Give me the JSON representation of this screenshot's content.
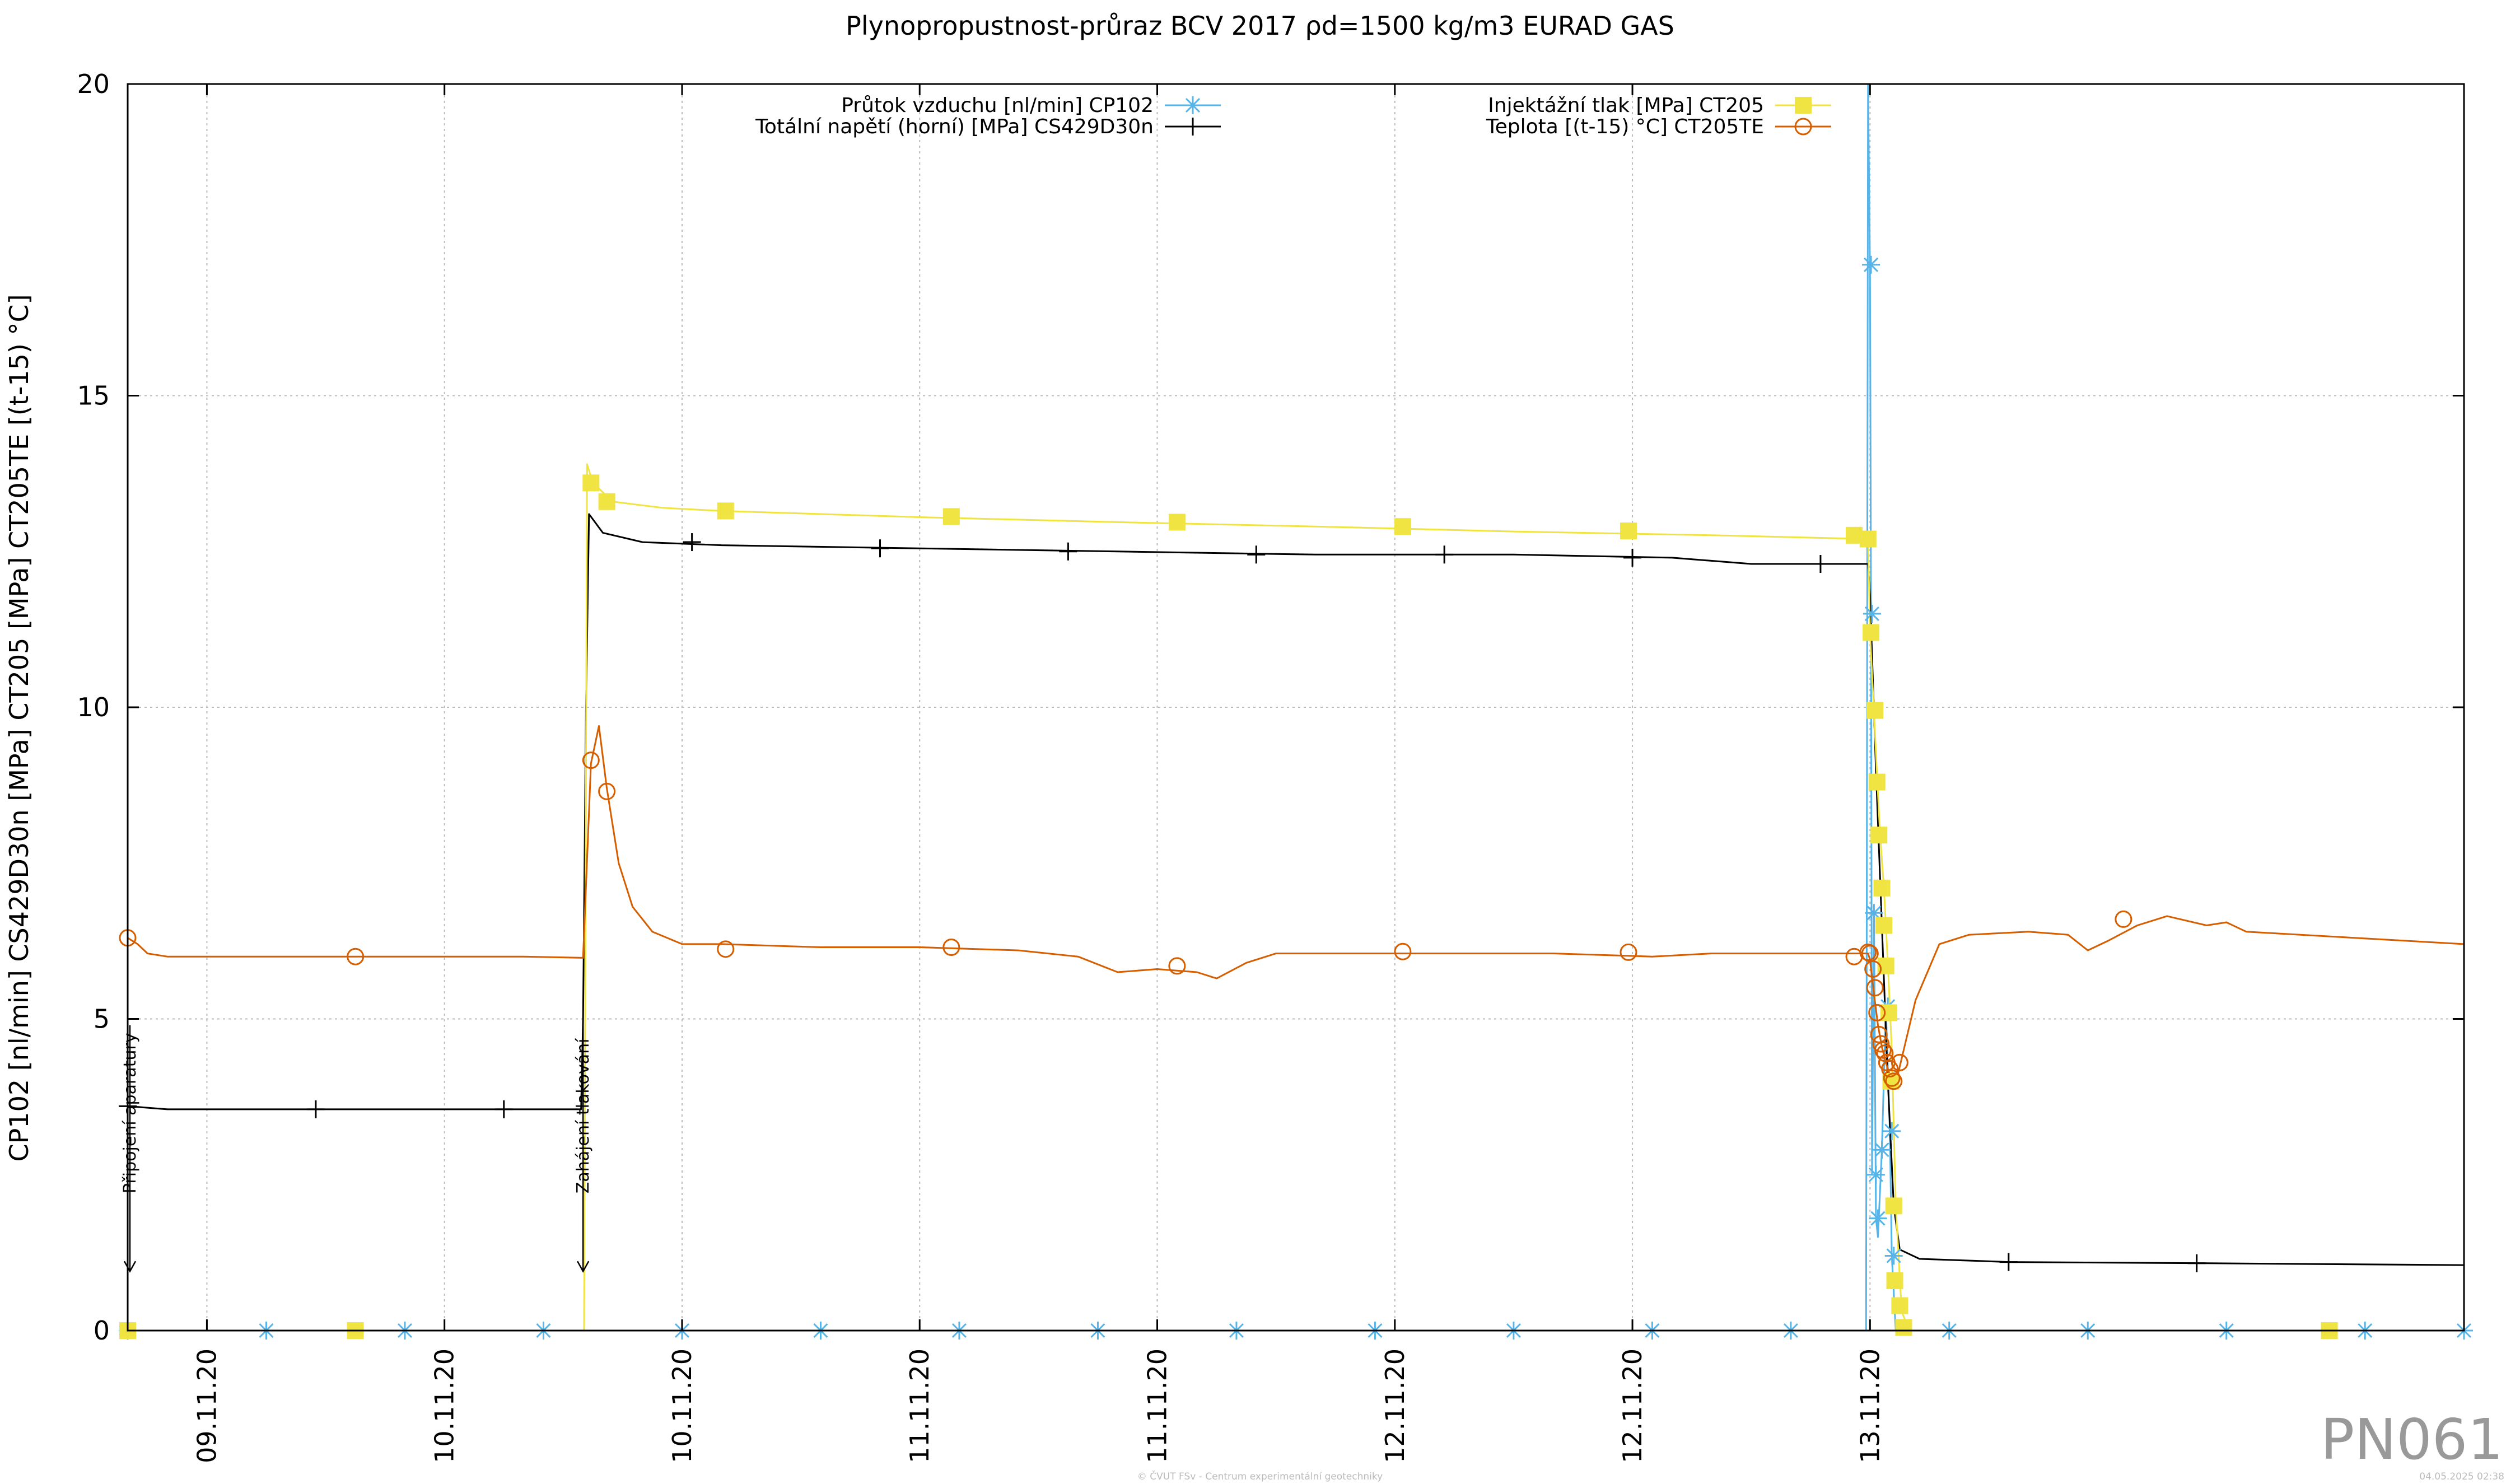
{
  "chart_data": {
    "type": "line",
    "title": "Plynopropustnost-průraz BCV 2017 ρd=1500 kg/m3 EURAD GAS",
    "ylabel": "CP102 [nl/min] CS429D30n [MPa] CT205 [MPa] CT205TE [(t-15) °C]",
    "xlabel": "",
    "x_unit": "hours",
    "xlim": [
      0,
      118
    ],
    "ylim": [
      0,
      20
    ],
    "y_ticks": [
      0,
      5,
      10,
      15,
      20
    ],
    "x_ticks": [
      {
        "x": 4,
        "label": "09.11.20"
      },
      {
        "x": 16,
        "label": "10.11.20"
      },
      {
        "x": 28,
        "label": "10.11.20"
      },
      {
        "x": 40,
        "label": "11.11.20"
      },
      {
        "x": 52,
        "label": "11.11.20"
      },
      {
        "x": 64,
        "label": "12.11.20"
      },
      {
        "x": 76,
        "label": "12.11.20"
      },
      {
        "x": 88,
        "label": "13.11.20"
      }
    ],
    "grid": true,
    "legend_placement": "top",
    "annotations": [
      {
        "x": 0,
        "text": "Připojení aparatury"
      },
      {
        "x": 23,
        "text": "Zahájení tlakování"
      }
    ],
    "series": [
      {
        "name": "Průtok vzduchu [nl/min] CP102",
        "color": "#56b4e9",
        "marker": "star",
        "points": [
          [
            0,
            0
          ],
          [
            23,
            0
          ],
          [
            87.8,
            0
          ],
          [
            87.9,
            20
          ],
          [
            88,
            17
          ],
          [
            88.05,
            11.5
          ],
          [
            88.1,
            2.5
          ],
          [
            88.2,
            6.7
          ],
          [
            88.3,
            1.8
          ],
          [
            88.4,
            1.5
          ],
          [
            88.6,
            2.9
          ],
          [
            88.8,
            5.2
          ],
          [
            89,
            3.2
          ],
          [
            89.1,
            1.2
          ],
          [
            89.3,
            0
          ],
          [
            118,
            0
          ]
        ],
        "marker_points": [
          [
            0,
            0
          ],
          [
            7,
            0
          ],
          [
            14,
            0
          ],
          [
            21,
            0
          ],
          [
            28,
            0
          ],
          [
            35,
            0
          ],
          [
            42,
            0
          ],
          [
            49,
            0
          ],
          [
            56,
            0
          ],
          [
            63,
            0
          ],
          [
            70,
            0
          ],
          [
            77,
            0
          ],
          [
            84,
            0
          ],
          [
            88.05,
            17.1
          ],
          [
            88.1,
            11.5
          ],
          [
            88.2,
            6.7
          ],
          [
            88.3,
            2.5
          ],
          [
            88.4,
            1.8
          ],
          [
            88.6,
            2.9
          ],
          [
            88.9,
            5.2
          ],
          [
            89.1,
            3.2
          ],
          [
            89.2,
            1.2
          ],
          [
            92,
            0
          ],
          [
            99,
            0
          ],
          [
            106,
            0
          ],
          [
            113,
            0
          ],
          [
            118,
            0
          ]
        ]
      },
      {
        "name": "Totální napětí (horní) [MPa] CS429D30n",
        "color": "#000000",
        "marker": "plus",
        "points": [
          [
            0,
            3.6
          ],
          [
            2,
            3.55
          ],
          [
            10,
            3.55
          ],
          [
            20,
            3.55
          ],
          [
            22.9,
            3.55
          ],
          [
            23,
            5
          ],
          [
            23.15,
            10
          ],
          [
            23.3,
            13.1
          ],
          [
            24,
            12.8
          ],
          [
            26,
            12.65
          ],
          [
            30,
            12.6
          ],
          [
            40,
            12.55
          ],
          [
            50,
            12.5
          ],
          [
            60,
            12.45
          ],
          [
            70,
            12.45
          ],
          [
            78,
            12.4
          ],
          [
            82,
            12.3
          ],
          [
            87.9,
            12.3
          ],
          [
            88,
            11.8
          ],
          [
            88.3,
            9
          ],
          [
            88.6,
            6.5
          ],
          [
            88.9,
            4
          ],
          [
            89.2,
            2
          ],
          [
            89.5,
            1.3
          ],
          [
            90.5,
            1.15
          ],
          [
            95,
            1.1
          ],
          [
            105,
            1.08
          ],
          [
            118,
            1.05
          ]
        ],
        "marker_points": [
          [
            0,
            3.6
          ],
          [
            9.5,
            3.55
          ],
          [
            19,
            3.55
          ],
          [
            28.5,
            12.65
          ],
          [
            38,
            12.55
          ],
          [
            47.5,
            12.5
          ],
          [
            57,
            12.45
          ],
          [
            66.5,
            12.45
          ],
          [
            76,
            12.4
          ],
          [
            85.5,
            12.3
          ],
          [
            95,
            1.1
          ],
          [
            104.5,
            1.08
          ]
        ]
      },
      {
        "name": "Injektážní tlak [MPa] CT205",
        "color": "#f0e442",
        "marker": "square",
        "points": [
          [
            0,
            0
          ],
          [
            22.9,
            0
          ],
          [
            23.05,
            0
          ],
          [
            23.2,
            13.9
          ],
          [
            23.5,
            13.6
          ],
          [
            24.5,
            13.3
          ],
          [
            27,
            13.2
          ],
          [
            30,
            13.15
          ],
          [
            40,
            13.05
          ],
          [
            50,
            12.97
          ],
          [
            60,
            12.9
          ],
          [
            70,
            12.82
          ],
          [
            80,
            12.76
          ],
          [
            87.9,
            12.7
          ],
          [
            88,
            11.2
          ],
          [
            88.2,
            9.9
          ],
          [
            88.5,
            8
          ],
          [
            88.7,
            7.1
          ],
          [
            88.9,
            5.9
          ],
          [
            89.1,
            4.5
          ],
          [
            89.3,
            2
          ],
          [
            89.6,
            0.3
          ],
          [
            90,
            0
          ],
          [
            118,
            0
          ]
        ],
        "marker_points": [
          [
            0,
            0
          ],
          [
            11.5,
            0
          ],
          [
            23.4,
            13.6
          ],
          [
            24.2,
            13.3
          ],
          [
            30.2,
            13.15
          ],
          [
            41.6,
            13.06
          ],
          [
            53,
            12.97
          ],
          [
            64.4,
            12.9
          ],
          [
            75.8,
            12.83
          ],
          [
            87.2,
            12.76
          ],
          [
            87.9,
            12.7
          ],
          [
            88.05,
            11.2
          ],
          [
            88.25,
            9.95
          ],
          [
            88.35,
            8.8
          ],
          [
            88.45,
            7.95
          ],
          [
            88.6,
            7.1
          ],
          [
            88.7,
            6.5
          ],
          [
            88.8,
            5.85
          ],
          [
            88.95,
            5.1
          ],
          [
            89.05,
            4.0
          ],
          [
            89.2,
            2.0
          ],
          [
            89.25,
            0.8
          ],
          [
            89.5,
            0.4
          ],
          [
            89.7,
            0.05
          ],
          [
            111.2,
            0
          ]
        ],
        "note": ""
      },
      {
        "name": "Teplota [(t-15) °C] CT205TE",
        "color": "#d55e00",
        "marker": "circle",
        "points": [
          [
            0,
            6.3
          ],
          [
            0.5,
            6.2
          ],
          [
            1,
            6.05
          ],
          [
            2,
            6.0
          ],
          [
            5,
            6.0
          ],
          [
            10,
            6.0
          ],
          [
            15,
            6.0
          ],
          [
            20,
            6.0
          ],
          [
            23,
            5.98
          ],
          [
            23.4,
            9.1
          ],
          [
            23.8,
            9.7
          ],
          [
            24.2,
            8.7
          ],
          [
            24.8,
            7.5
          ],
          [
            25.5,
            6.8
          ],
          [
            26.5,
            6.4
          ],
          [
            28,
            6.2
          ],
          [
            30,
            6.2
          ],
          [
            35,
            6.15
          ],
          [
            40,
            6.15
          ],
          [
            45,
            6.1
          ],
          [
            48,
            6.0
          ],
          [
            50,
            5.75
          ],
          [
            52,
            5.8
          ],
          [
            54,
            5.75
          ],
          [
            55,
            5.65
          ],
          [
            56.5,
            5.9
          ],
          [
            58,
            6.05
          ],
          [
            62,
            6.05
          ],
          [
            67,
            6.05
          ],
          [
            72,
            6.05
          ],
          [
            77,
            6.0
          ],
          [
            80,
            6.05
          ],
          [
            87.9,
            6.05
          ],
          [
            88,
            5.95
          ],
          [
            88.2,
            5.4
          ],
          [
            88.4,
            4.9
          ],
          [
            88.6,
            4.55
          ],
          [
            88.8,
            4.3
          ],
          [
            89,
            4.1
          ],
          [
            89.2,
            4.05
          ],
          [
            89.4,
            4.1
          ],
          [
            89.7,
            4.5
          ],
          [
            90.3,
            5.3
          ],
          [
            91.5,
            6.2
          ],
          [
            93,
            6.35
          ],
          [
            96,
            6.4
          ],
          [
            98,
            6.35
          ],
          [
            99,
            6.1
          ],
          [
            100,
            6.25
          ],
          [
            101.5,
            6.5
          ],
          [
            103,
            6.65
          ],
          [
            105,
            6.5
          ],
          [
            106,
            6.55
          ],
          [
            107,
            6.4
          ],
          [
            118,
            6.2
          ]
        ],
        "marker_points": [
          [
            0,
            6.3
          ],
          [
            11.5,
            6.0
          ],
          [
            23.4,
            9.15
          ],
          [
            24.2,
            8.65
          ],
          [
            30.2,
            6.12
          ],
          [
            41.6,
            6.15
          ],
          [
            53,
            5.85
          ],
          [
            64.4,
            6.08
          ],
          [
            75.8,
            6.07
          ],
          [
            87.2,
            6.0
          ],
          [
            87.9,
            6.07
          ],
          [
            88.0,
            6.05
          ],
          [
            88.15,
            5.8
          ],
          [
            88.25,
            5.5
          ],
          [
            88.35,
            5.1
          ],
          [
            88.45,
            4.75
          ],
          [
            88.55,
            4.6
          ],
          [
            88.65,
            4.5
          ],
          [
            88.75,
            4.45
          ],
          [
            88.85,
            4.3
          ],
          [
            89.0,
            4.2
          ],
          [
            89.1,
            4.05
          ],
          [
            89.2,
            4.0
          ],
          [
            89.5,
            4.3
          ],
          [
            100.8,
            6.6
          ]
        ],
        "note": ""
      }
    ]
  },
  "watermark": {
    "id_label": "PN061",
    "copyright": "© ČVUT FSv - Centrum experimentální geotechniky",
    "timestamp": "04.05.2025 02:38"
  }
}
